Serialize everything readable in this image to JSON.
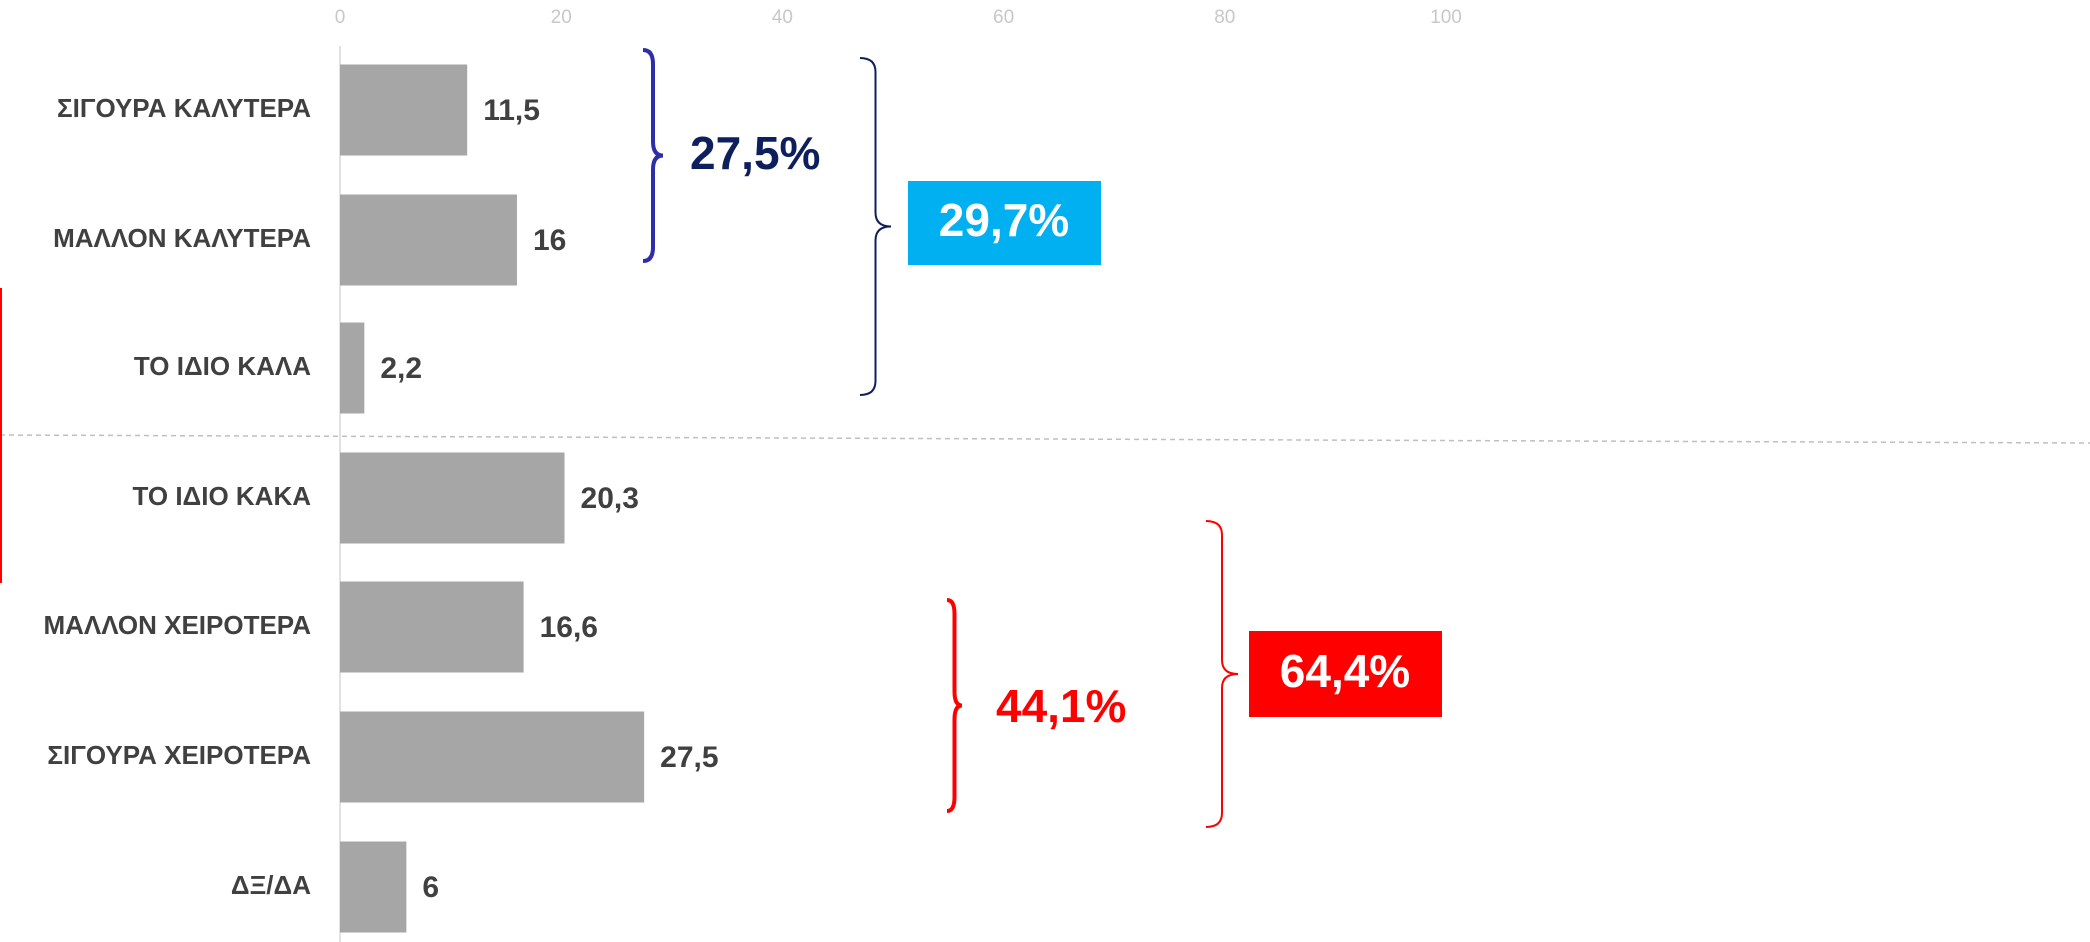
{
  "chart_data": {
    "type": "barh",
    "categories": [
      "ΣΙΓΟΥΡΑ ΚΑΛΥΤΕΡΑ",
      "ΜΑΛΛΟΝ ΚΑΛΥΤΕΡΑ",
      "ΤΟ ΙΔΙΟ ΚΑΛΑ",
      "ΤΟ ΙΔΙΟ ΚΑΚΑ",
      "ΜΑΛΛΟΝ ΧΕΙΡΟΤΕΡΑ",
      "ΣΙΓΟΥΡΑ ΧΕΙΡΟΤΕΡΑ",
      "ΔΞ/ΔΑ"
    ],
    "values": [
      11.5,
      16,
      2.2,
      20.3,
      16.6,
      27.5,
      6
    ],
    "value_labels": [
      "11,5",
      "16",
      "2,2",
      "20,3",
      "16,6",
      "27,5",
      "6"
    ],
    "color": "#a6a6a6",
    "xlim": [
      0,
      100
    ],
    "xticks": [
      0,
      20,
      40,
      60,
      80,
      100
    ],
    "grid": false,
    "annotations": [
      {
        "text": "27,5%",
        "color": "#0d1f5c"
      },
      {
        "text": "29,7%",
        "color": "#00b0f0"
      },
      {
        "text": "44,1%",
        "color": "#ff0000"
      },
      {
        "text": "64,4%",
        "color": "#ff0000"
      }
    ]
  }
}
